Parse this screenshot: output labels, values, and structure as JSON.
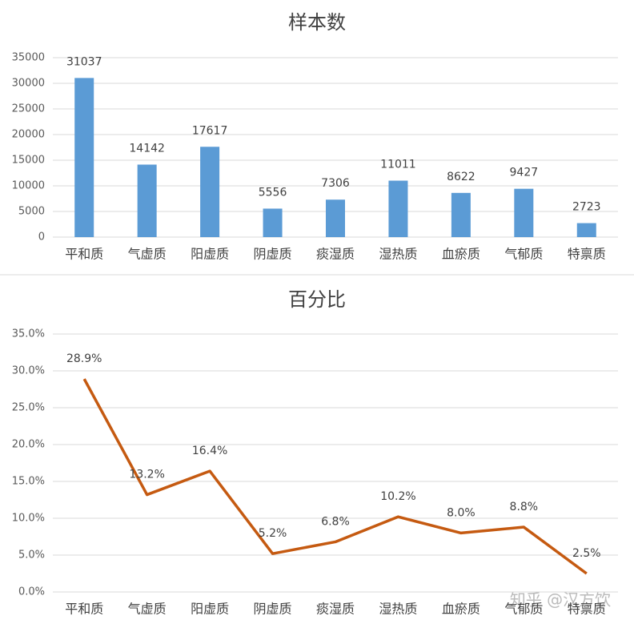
{
  "chart_data": [
    {
      "type": "bar",
      "title": "样本数",
      "categories": [
        "平和质",
        "气虚质",
        "阳虚质",
        "阴虚质",
        "痰湿质",
        "湿热质",
        "血瘀质",
        "气郁质",
        "特禀质"
      ],
      "values": [
        31037,
        14142,
        17617,
        5556,
        7306,
        11011,
        8622,
        9427,
        2723
      ],
      "color": "#5b9bd5",
      "ylim": [
        0,
        35000
      ],
      "yticks": [
        0,
        5000,
        10000,
        15000,
        20000,
        25000,
        30000,
        35000
      ],
      "grid": true
    },
    {
      "type": "line",
      "title": "百分比",
      "categories": [
        "平和质",
        "气虚质",
        "阳虚质",
        "阴虚质",
        "痰湿质",
        "湿热质",
        "血瘀质",
        "气郁质",
        "特禀质"
      ],
      "values": [
        28.9,
        13.2,
        16.4,
        5.2,
        6.8,
        10.2,
        8.0,
        8.8,
        2.5
      ],
      "value_labels": [
        "28.9%",
        "13.2%",
        "16.4%",
        "5.2%",
        "6.8%",
        "10.2%",
        "8.0%",
        "8.8%",
        "2.5%"
      ],
      "color": "#c55a11",
      "ylim": [
        0,
        35
      ],
      "yticks": [
        {
          "value": 0,
          "label": "0.0%"
        },
        {
          "value": 5,
          "label": "5.0%"
        },
        {
          "value": 10,
          "label": "10.0%"
        },
        {
          "value": 15,
          "label": "15.0%"
        },
        {
          "value": 20,
          "label": "20.0%"
        },
        {
          "value": 25,
          "label": "25.0%"
        },
        {
          "value": 30,
          "label": "30.0%"
        },
        {
          "value": 35,
          "label": "35.0%"
        }
      ],
      "grid": true
    }
  ],
  "watermark": "知乎 @汉方饮"
}
